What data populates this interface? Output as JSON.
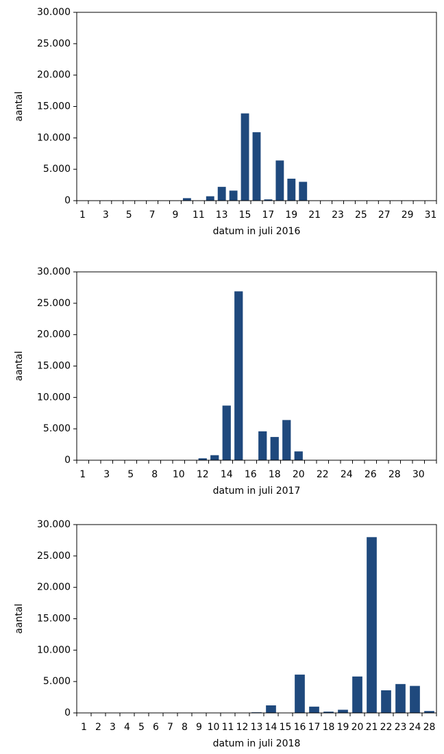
{
  "chart_data": [
    {
      "type": "bar",
      "color": "#1f497d",
      "y_label": "aantal",
      "x_label": "datum in juli 2016",
      "categories": [
        "1",
        null,
        "3",
        null,
        "5",
        null,
        "7",
        null,
        "9",
        null,
        "11",
        null,
        "13",
        null,
        "15",
        null,
        "17",
        null,
        "19",
        null,
        "21",
        null,
        "23",
        null,
        "25",
        null,
        "27",
        null,
        "29",
        null,
        "31"
      ],
      "values": [
        0,
        0,
        0,
        0,
        0,
        0,
        0,
        0,
        0,
        400,
        0,
        700,
        2200,
        1600,
        13900,
        10900,
        200,
        6400,
        3500,
        3000,
        0,
        0,
        0,
        0,
        0,
        0,
        0,
        0,
        0,
        0,
        0
      ],
      "ylim": [
        0,
        30000
      ],
      "yticks": [
        0,
        {
          "value": 5000,
          "label": "5.000"
        },
        {
          "value": 10000,
          "label": "10.000"
        },
        {
          "value": 15000,
          "label": "15.000"
        },
        {
          "value": 20000,
          "label": "20.000"
        },
        {
          "value": 25000,
          "label": "25.000"
        },
        {
          "value": 30000,
          "label": "30.000"
        }
      ]
    },
    {
      "type": "bar",
      "color": "#1f497d",
      "y_label": "aantal",
      "x_label": "datum in juli 2017",
      "categories": [
        "1",
        null,
        "3",
        null,
        "5",
        null,
        "8",
        null,
        "10",
        null,
        "12",
        null,
        "14",
        null,
        "16",
        null,
        "18",
        null,
        "20",
        null,
        "22",
        null,
        "24",
        null,
        "26",
        null,
        "28",
        null,
        "30",
        null
      ],
      "values": [
        0,
        0,
        0,
        0,
        0,
        0,
        0,
        0,
        0,
        0,
        300,
        800,
        8700,
        26900,
        0,
        4600,
        3700,
        6400,
        1400,
        0,
        0,
        0,
        0,
        0,
        0,
        0,
        0,
        0,
        0,
        0
      ],
      "ylim": [
        0,
        30000
      ],
      "yticks": [
        0,
        {
          "value": 5000,
          "label": "5.000"
        },
        {
          "value": 10000,
          "label": "10.000"
        },
        {
          "value": 15000,
          "label": "15.000"
        },
        {
          "value": 20000,
          "label": "20.000"
        },
        {
          "value": 25000,
          "label": "25.000"
        },
        {
          "value": 30000,
          "label": "30.000"
        }
      ]
    },
    {
      "type": "bar",
      "color": "#1f497d",
      "y_label": "aantal",
      "x_label": "datum in juli 2018",
      "categories": [
        "1",
        "2",
        "3",
        "4",
        "5",
        "6",
        "7",
        "8",
        "9",
        "10",
        "11",
        "12",
        "13",
        "14",
        "15",
        "16",
        "17",
        "18",
        "19",
        "20",
        "21",
        "22",
        "23",
        "24",
        "28"
      ],
      "values": [
        0,
        0,
        0,
        0,
        0,
        0,
        0,
        0,
        0,
        0,
        0,
        0,
        100,
        1200,
        0,
        6100,
        1000,
        200,
        500,
        5800,
        28000,
        3600,
        4600,
        4300,
        300
      ],
      "ylim": [
        0,
        30000
      ],
      "yticks": [
        0,
        {
          "value": 5000,
          "label": "5.000"
        },
        {
          "value": 10000,
          "label": "10.000"
        },
        {
          "value": 15000,
          "label": "15.000"
        },
        {
          "value": 20000,
          "label": "20.000"
        },
        {
          "value": 25000,
          "label": "25.000"
        },
        {
          "value": 30000,
          "label": "30.000"
        }
      ]
    }
  ]
}
